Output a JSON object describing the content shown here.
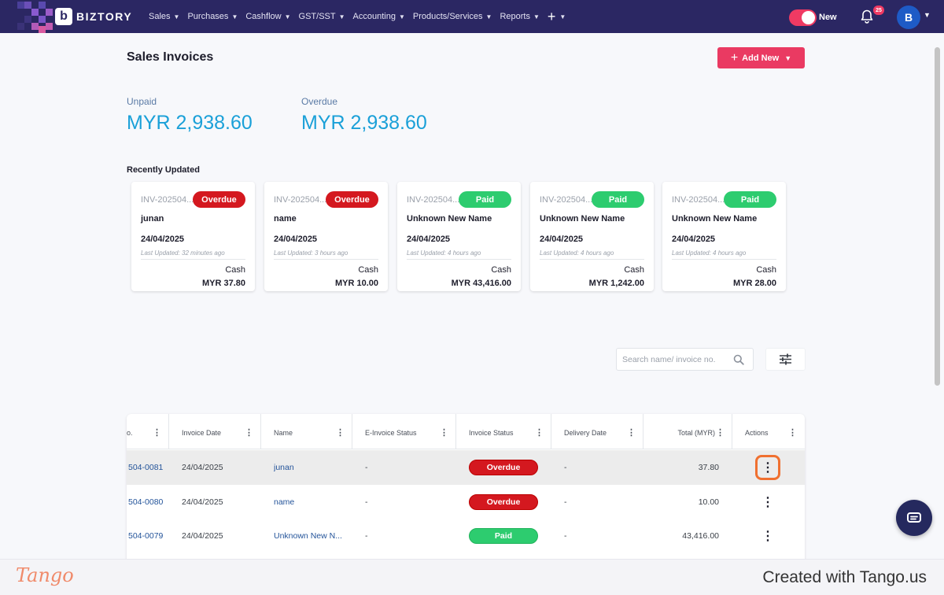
{
  "brand": {
    "mark": "b",
    "name": "BIZTORY"
  },
  "nav": {
    "items": [
      "Sales",
      "Purchases",
      "Cashflow",
      "GST/SST",
      "Accounting",
      "Products/Services",
      "Reports"
    ],
    "plus": "+",
    "toggle_label": "New",
    "notifications_count": "25",
    "avatar_initial": "B"
  },
  "page": {
    "title": "Sales Invoices",
    "add_new_label": "Add New"
  },
  "summary": {
    "unpaid_label": "Unpaid",
    "unpaid_amount": "MYR 2,938.60",
    "overdue_label": "Overdue",
    "overdue_amount": "MYR 2,938.60"
  },
  "recent": {
    "title": "Recently Updated",
    "cards": [
      {
        "invoice": "INV-202504...",
        "status": "Overdue",
        "status_key": "overdue",
        "name": "junan",
        "date": "24/04/2025",
        "updated": "Last Updated: 32 minutes ago",
        "method": "Cash",
        "amount": "MYR 37.80"
      },
      {
        "invoice": "INV-202504...",
        "status": "Overdue",
        "status_key": "overdue",
        "name": "name",
        "date": "24/04/2025",
        "updated": "Last Updated: 3 hours ago",
        "method": "Cash",
        "amount": "MYR 10.00"
      },
      {
        "invoice": "INV-202504...",
        "status": "Paid",
        "status_key": "paid",
        "name": "Unknown New Name",
        "date": "24/04/2025",
        "updated": "Last Updated: 4 hours ago",
        "method": "Cash",
        "amount": "MYR 43,416.00"
      },
      {
        "invoice": "INV-202504...",
        "status": "Paid",
        "status_key": "paid",
        "name": "Unknown New Name",
        "date": "24/04/2025",
        "updated": "Last Updated: 4 hours ago",
        "method": "Cash",
        "amount": "MYR 1,242.00"
      },
      {
        "invoice": "INV-202504...",
        "status": "Paid",
        "status_key": "paid",
        "name": "Unknown New Name",
        "date": "24/04/2025",
        "updated": "Last Updated: 4 hours ago",
        "method": "Cash",
        "amount": "MYR 28.00"
      }
    ]
  },
  "search": {
    "placeholder": "Search name/ invoice no.",
    "value": ""
  },
  "table": {
    "columns": [
      "o.",
      "Invoice Date",
      "Name",
      "E-Invoice Status",
      "Invoice Status",
      "Delivery Date",
      "Total (MYR)",
      "Actions"
    ],
    "rows": [
      {
        "invoice_no": "504-0081",
        "date": "24/04/2025",
        "name": "junan",
        "einvoice": "-",
        "status": "Overdue",
        "status_key": "overdue",
        "delivery": "-",
        "total": "37.80"
      },
      {
        "invoice_no": "504-0080",
        "date": "24/04/2025",
        "name": "name",
        "einvoice": "-",
        "status": "Overdue",
        "status_key": "overdue",
        "delivery": "-",
        "total": "10.00"
      },
      {
        "invoice_no": "504-0079",
        "date": "24/04/2025",
        "name": "Unknown New N...",
        "einvoice": "-",
        "status": "Paid",
        "status_key": "paid",
        "delivery": "-",
        "total": "43,416.00"
      }
    ]
  },
  "footer": {
    "logo": "Tango",
    "credit": "Created with Tango.us"
  },
  "colors": {
    "nav_bg": "#2b2763",
    "accent": "#ea3a62",
    "amount_blue": "#1aa0d8",
    "overdue": "#d4181f",
    "paid": "#2dcc6f",
    "focus_ring": "#f07030"
  }
}
